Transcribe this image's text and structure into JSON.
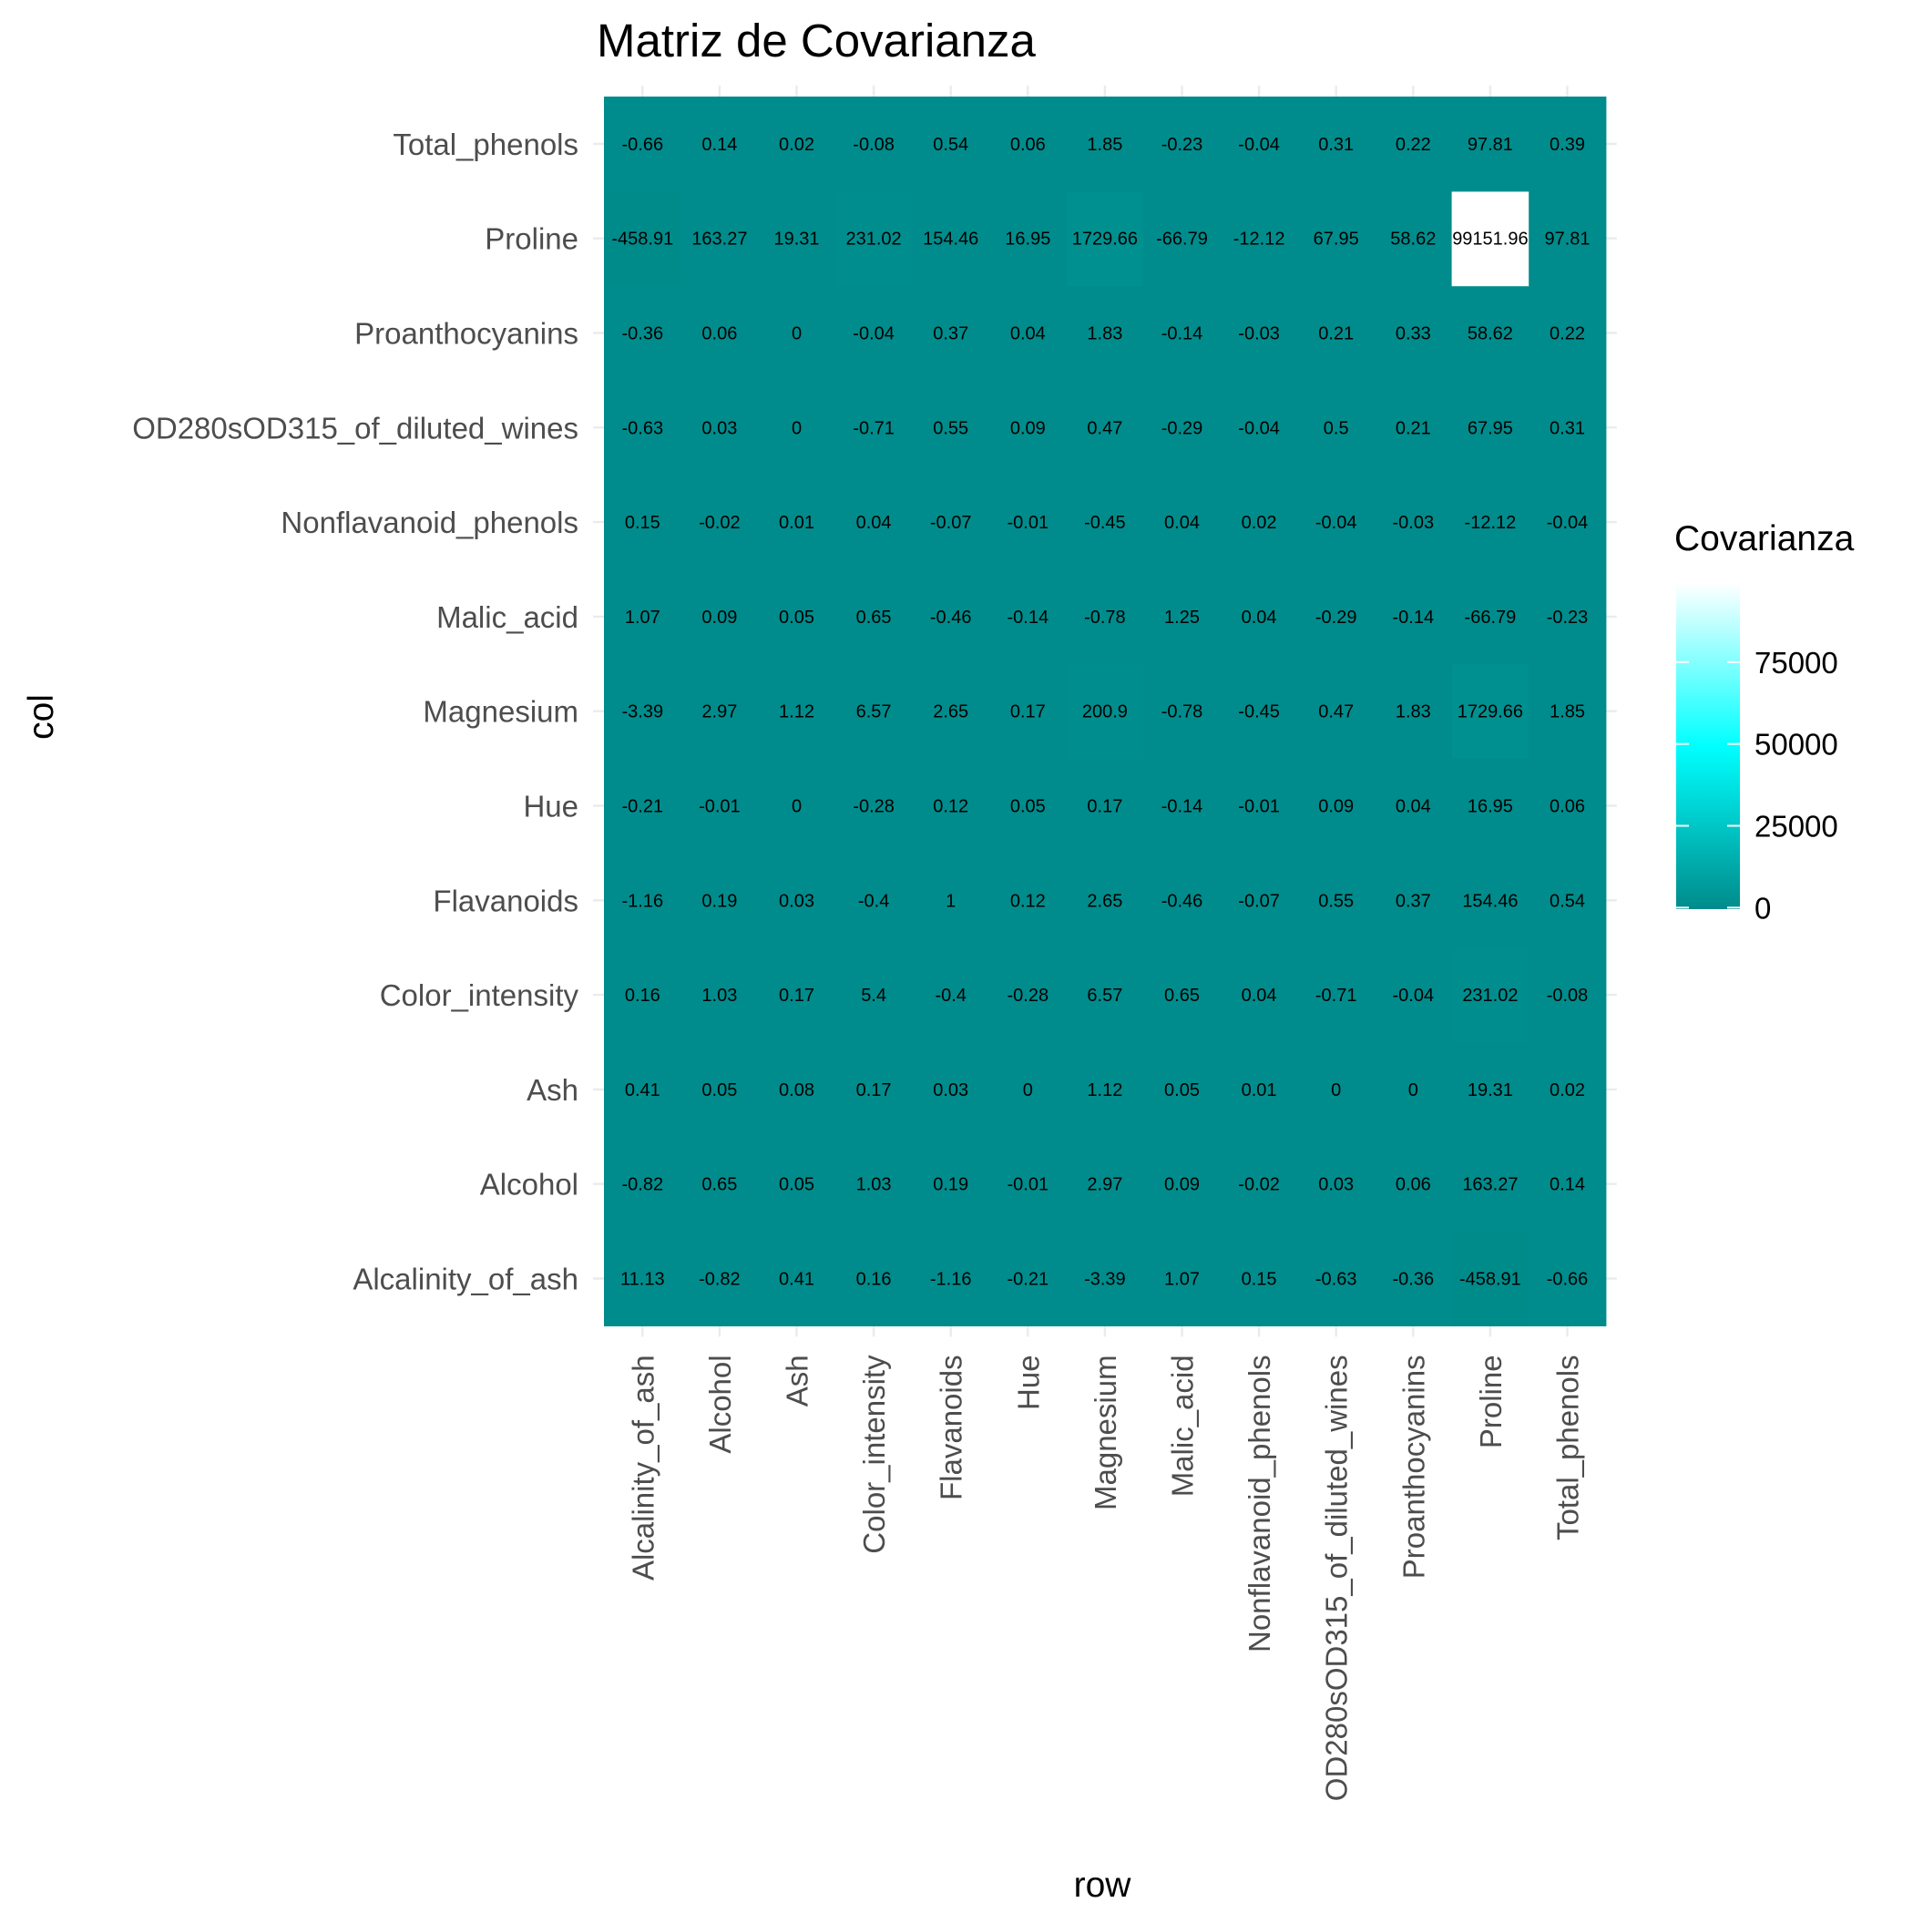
{
  "chart_data": {
    "type": "heatmap",
    "title": "Matriz de Covarianza",
    "xlabel": "row",
    "ylabel": "col",
    "x_categories": [
      "Alcalinity_of_ash",
      "Alcohol",
      "Ash",
      "Color_intensity",
      "Flavanoids",
      "Hue",
      "Magnesium",
      "Malic_acid",
      "Nonflavanoid_phenols",
      "OD280sOD315_of_diluted_wines",
      "Proanthocyanins",
      "Proline",
      "Total_phenols"
    ],
    "y_categories": [
      "Alcalinity_of_ash",
      "Alcohol",
      "Ash",
      "Color_intensity",
      "Flavanoids",
      "Hue",
      "Magnesium",
      "Malic_acid",
      "Nonflavanoid_phenols",
      "OD280sOD315_of_diluted_wines",
      "Proanthocyanins",
      "Proline",
      "Total_phenols"
    ],
    "values": [
      [
        11.13,
        -0.82,
        0.41,
        0.16,
        -1.16,
        -0.21,
        -3.39,
        1.07,
        0.15,
        -0.63,
        -0.36,
        -458.91,
        -0.66
      ],
      [
        -0.82,
        0.65,
        0.05,
        1.03,
        0.19,
        -0.01,
        2.97,
        0.09,
        -0.02,
        0.03,
        0.06,
        163.27,
        0.14
      ],
      [
        0.41,
        0.05,
        0.08,
        0.17,
        0.03,
        0,
        1.12,
        0.05,
        0.01,
        0,
        0,
        19.31,
        0.02
      ],
      [
        0.16,
        1.03,
        0.17,
        5.4,
        -0.4,
        -0.28,
        6.57,
        0.65,
        0.04,
        -0.71,
        -0.04,
        231.02,
        -0.08
      ],
      [
        -1.16,
        0.19,
        0.03,
        -0.4,
        1,
        0.12,
        2.65,
        -0.46,
        -0.07,
        0.55,
        0.37,
        154.46,
        0.54
      ],
      [
        -0.21,
        -0.01,
        0,
        -0.28,
        0.12,
        0.05,
        0.17,
        -0.14,
        -0.01,
        0.09,
        0.04,
        16.95,
        0.06
      ],
      [
        -3.39,
        2.97,
        1.12,
        6.57,
        2.65,
        0.17,
        200.9,
        -0.78,
        -0.45,
        0.47,
        1.83,
        1729.66,
        1.85
      ],
      [
        1.07,
        0.09,
        0.05,
        0.65,
        -0.46,
        -0.14,
        -0.78,
        1.25,
        0.04,
        -0.29,
        -0.14,
        -66.79,
        -0.23
      ],
      [
        0.15,
        -0.02,
        0.01,
        0.04,
        -0.07,
        -0.01,
        -0.45,
        0.04,
        0.02,
        -0.04,
        -0.03,
        -12.12,
        -0.04
      ],
      [
        -0.63,
        0.03,
        0,
        -0.71,
        0.55,
        0.09,
        0.47,
        -0.29,
        -0.04,
        0.5,
        0.21,
        67.95,
        0.31
      ],
      [
        -0.36,
        0.06,
        0,
        -0.04,
        0.37,
        0.04,
        1.83,
        -0.14,
        -0.03,
        0.21,
        0.33,
        58.62,
        0.22
      ],
      [
        -458.91,
        163.27,
        19.31,
        231.02,
        154.46,
        16.95,
        1729.66,
        -66.79,
        -12.12,
        67.95,
        58.62,
        99151.96,
        97.81
      ],
      [
        -0.66,
        0.14,
        0.02,
        -0.08,
        0.54,
        0.06,
        1.85,
        -0.23,
        -0.04,
        0.31,
        0.22,
        97.81,
        0.39
      ]
    ],
    "legend": {
      "title": "Covarianza",
      "position": "right",
      "ticks": [
        0,
        25000,
        50000,
        75000
      ]
    },
    "color_scale": {
      "low": "#008b8b",
      "mid": "#00ffff",
      "high": "#ffffff",
      "domain": [
        -458.91,
        99151.96
      ]
    },
    "grid": true
  }
}
